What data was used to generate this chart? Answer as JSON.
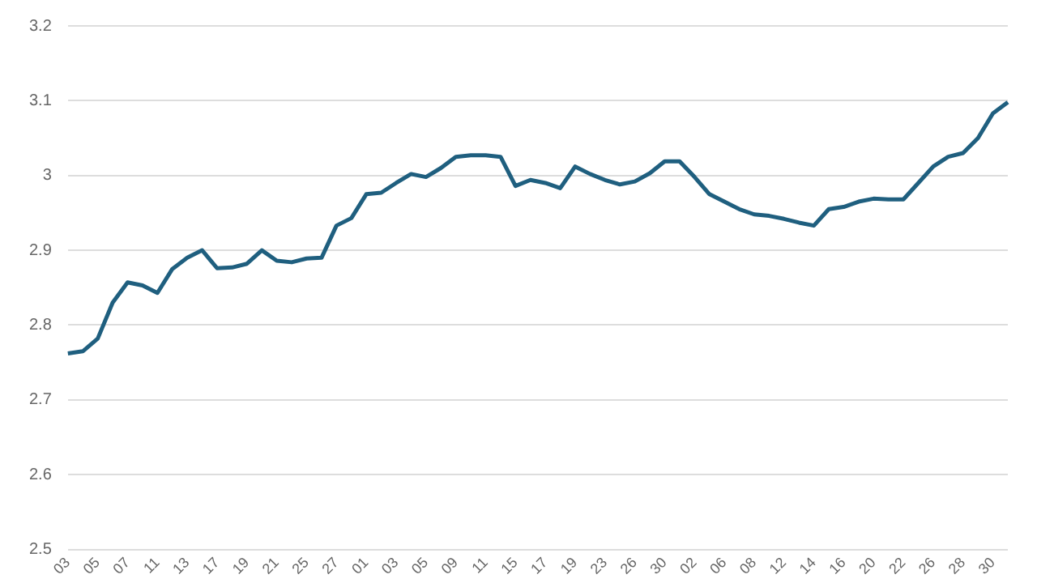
{
  "chart_data": {
    "type": "line",
    "categories": [
      "03",
      null,
      "05",
      null,
      "07",
      null,
      "11",
      null,
      "13",
      null,
      "17",
      null,
      "19",
      null,
      "21",
      null,
      "25",
      null,
      "27",
      null,
      "01",
      null,
      "03",
      null,
      "05",
      null,
      "09",
      null,
      "11",
      null,
      "15",
      null,
      "17",
      null,
      "19",
      null,
      "23",
      null,
      "26",
      null,
      "30",
      null,
      "02",
      null,
      "06",
      null,
      "08",
      null,
      "12",
      null,
      "14",
      null,
      "16",
      null,
      "20",
      null,
      "22",
      null,
      "26",
      null,
      "28",
      null,
      "30",
      null
    ],
    "series": [
      {
        "color": "#1f5f7f",
        "values": [
          2.762,
          2.765,
          2.782,
          2.83,
          2.857,
          2.853,
          2.843,
          2.875,
          2.89,
          2.9,
          2.876,
          2.877,
          2.882,
          2.9,
          2.886,
          2.884,
          2.889,
          2.89,
          2.933,
          2.943,
          2.975,
          2.977,
          2.99,
          3.002,
          2.998,
          3.01,
          3.025,
          3.027,
          3.027,
          3.025,
          2.986,
          2.994,
          2.99,
          2.983,
          3.012,
          3.002,
          2.994,
          2.988,
          2.992,
          3.003,
          3.019,
          3.019,
          2.998,
          2.975,
          2.965,
          2.955,
          2.948,
          2.946,
          2.942,
          2.937,
          2.933,
          2.955,
          2.958,
          2.965,
          2.969,
          2.968,
          2.968,
          2.99,
          3.012,
          3.025,
          3.03,
          3.05,
          3.083,
          3.098
        ]
      }
    ],
    "ylim": [
      2.5,
      3.2
    ],
    "yticks": [
      2.5,
      2.6,
      2.7,
      2.8,
      2.9,
      3,
      3.1,
      3.2
    ],
    "grid": "y",
    "legend": false,
    "marker": "none",
    "line_style": "solid"
  }
}
